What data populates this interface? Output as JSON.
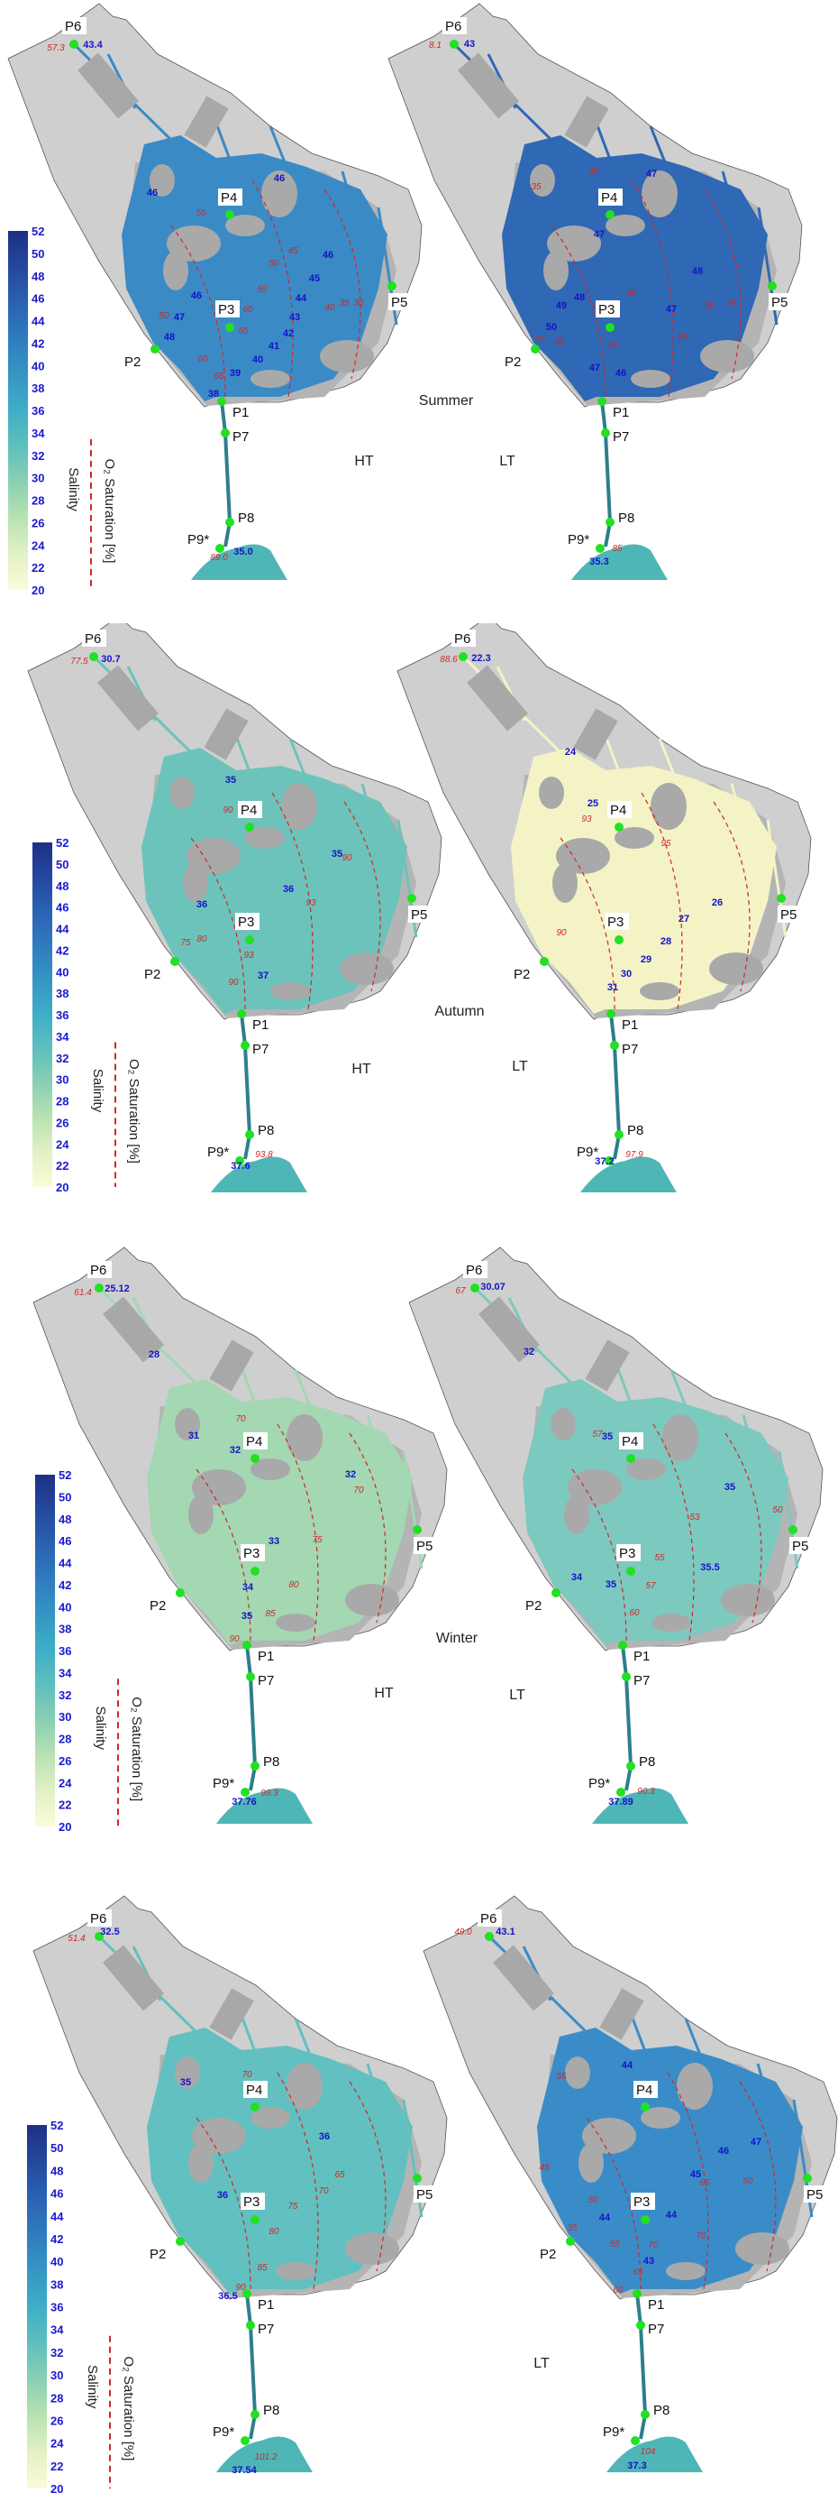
{
  "colorbar": {
    "ticks": [
      "52",
      "50",
      "48",
      "46",
      "44",
      "42",
      "40",
      "38",
      "36",
      "34",
      "32",
      "30",
      "28",
      "26",
      "24",
      "22",
      "20"
    ],
    "salinity_label": "Salinity",
    "o2_label": "O₂ Saturation [%]"
  },
  "colors": {
    "station_dot": "#22e022",
    "o2_contour": "#d02828",
    "salinity_text": "#1414c8",
    "land": "#cfcfcf",
    "sea": "#4fb6b8"
  },
  "panels": [
    {
      "season": "Summer",
      "ht_label": "HT",
      "lt_label": "LT",
      "maps": [
        {
          "tide": "HT",
          "water_color": "#3a8ac6",
          "p6_o2": "57.3",
          "p6_salinity": "43.4",
          "sea_o2": "89.0",
          "sea_salinity": "35.0",
          "salinity": [
            "46",
            "46",
            "46",
            "45",
            "44",
            "43",
            "42",
            "41",
            "40",
            "39",
            "38",
            "46",
            "47",
            "48"
          ],
          "o2": [
            "55",
            "50",
            "45",
            "55",
            "60",
            "65",
            "60",
            "65",
            "50",
            "40",
            "35",
            "30"
          ]
        },
        {
          "tide": "LT",
          "water_color": "#2f68b4",
          "p6_o2": "8.1",
          "p6_salinity": "43",
          "sea_o2": "85",
          "sea_salinity": "35.3",
          "salinity": [
            "47",
            "47",
            "48",
            "49",
            "48",
            "50",
            "47",
            "47",
            "46"
          ],
          "o2": [
            "40",
            "35",
            "45",
            "30",
            "25",
            "25",
            "30",
            "40",
            "35"
          ]
        }
      ]
    },
    {
      "season": "Autumn",
      "ht_label": "HT",
      "lt_label": "LT",
      "maps": [
        {
          "tide": "HT",
          "water_color": "#6cc3bb",
          "p6_o2": "77.5",
          "p6_salinity": "30.7",
          "sea_o2": "93.8",
          "sea_salinity": "37.6",
          "salinity": [
            "35",
            "35",
            "36",
            "36",
            "37"
          ],
          "o2": [
            "90",
            "90",
            "93",
            "75",
            "80",
            "93",
            "90"
          ]
        },
        {
          "tide": "LT",
          "water_color": "#f3f3c6",
          "p6_o2": "88.6",
          "p6_salinity": "22.3",
          "sea_o2": "97.9",
          "sea_salinity": "37.2",
          "salinity": [
            "24",
            "25",
            "26",
            "27",
            "28",
            "29",
            "30",
            "31"
          ],
          "o2": [
            "93",
            "95",
            "90"
          ]
        }
      ]
    },
    {
      "season": "Winter",
      "ht_label": "HT",
      "lt_label": "LT",
      "maps": [
        {
          "tide": "HT",
          "water_color": "#a3d8b2",
          "p6_o2": "61.4",
          "p6_salinity": "25.12",
          "sea_o2": "99.3",
          "sea_salinity": "37.76",
          "salinity": [
            "28",
            "31",
            "32",
            "32",
            "33",
            "34",
            "35"
          ],
          "o2": [
            "70",
            "70",
            "75",
            "80",
            "85",
            "90"
          ]
        },
        {
          "tide": "LT",
          "water_color": "#7cc9c0",
          "p6_o2": "67",
          "p6_salinity": "30.07",
          "sea_o2": "90.3",
          "sea_salinity": "37.89",
          "salinity": [
            "32",
            "35",
            "35",
            "34",
            "35",
            "35.5"
          ],
          "o2": [
            "57",
            "53",
            "50",
            "55",
            "57",
            "60"
          ]
        }
      ]
    },
    {
      "lt_label": "LT",
      "maps": [
        {
          "tide": "HT",
          "water_color": "#62c0c0",
          "p6_o2": "51.4",
          "p6_salinity": "32.5",
          "sea_o2": "101.2",
          "sea_salinity": "37.54",
          "salinity": [
            "35",
            "36",
            "36",
            "36.5"
          ],
          "o2": [
            "70",
            "65",
            "70",
            "75",
            "80",
            "85",
            "90"
          ]
        },
        {
          "tide": "LT",
          "water_color": "#3a8cc8",
          "p6_o2": "49.0",
          "p6_salinity": "43.1",
          "sea_o2": "104",
          "sea_salinity": "37.3",
          "salinity": [
            "44",
            "46",
            "47",
            "45",
            "44",
            "44",
            "43"
          ],
          "o2": [
            "55",
            "45",
            "50",
            "35",
            "55",
            "70",
            "65",
            "65",
            "60",
            "70",
            "60"
          ]
        }
      ]
    }
  ],
  "stations": [
    "P1",
    "P2",
    "P3",
    "P4",
    "P5",
    "P6",
    "P7",
    "P8",
    "P9*"
  ]
}
